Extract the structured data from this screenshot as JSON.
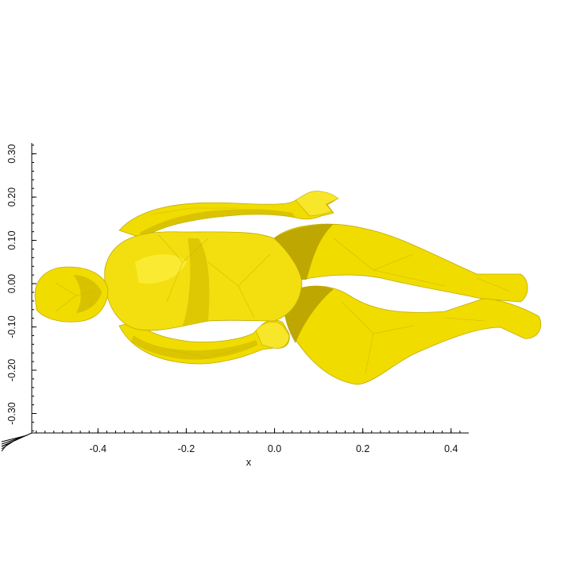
{
  "figure": {
    "xlabel": "x",
    "ylabel": "",
    "mesh_color": "#f1dc00",
    "mesh_shade_dark": "#b59e00",
    "mesh_shade_mid": "#d9c300",
    "mesh_highlight": "#fff34a",
    "background": "#ffffff"
  },
  "chart_data": {
    "type": "3d-surface-mesh",
    "x_ticks": [
      -0.4,
      -0.2,
      0.0,
      0.2,
      0.4
    ],
    "x_tick_labels": [
      "-0.4",
      "-0.2",
      "0.0",
      "0.2",
      "0.4"
    ],
    "y_ticks": [
      0.3,
      0.2,
      0.1,
      0.0,
      -0.1,
      -0.2,
      -0.3
    ],
    "y_tick_labels": [
      "0.30",
      "0.20",
      "0.10",
      "0.00",
      "-0.10",
      "-0.20",
      "-0.30"
    ],
    "xlim": [
      -0.55,
      0.44
    ],
    "ylim": [
      -0.345,
      0.325
    ],
    "grid": false
  }
}
